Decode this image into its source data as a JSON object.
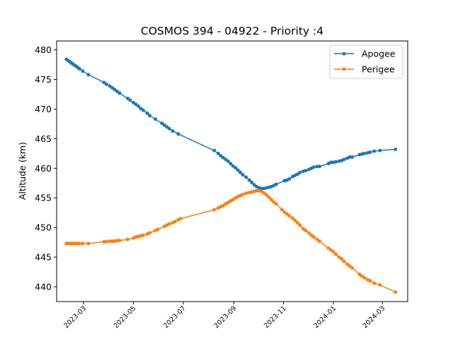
{
  "chart_data": {
    "type": "line",
    "title": "COSMOS 394 - 04922 - Priority :4",
    "xlabel": "",
    "ylabel": "Altitude (km)",
    "xlim": [
      "2023-01-27",
      "2024-04-01"
    ],
    "ylim": [
      437.5,
      481.5
    ],
    "x_tick_labels": [
      "2023-03",
      "2023-05",
      "2023-07",
      "2023-09",
      "2023-11",
      "2024-01",
      "2024-03"
    ],
    "x_tick_dates": [
      "2023-03-01",
      "2023-05-01",
      "2023-07-01",
      "2023-09-01",
      "2023-11-01",
      "2024-01-01",
      "2024-03-01"
    ],
    "y_ticks": [
      440,
      445,
      450,
      455,
      460,
      465,
      470,
      475,
      480
    ],
    "grid": false,
    "legend": "top-right",
    "series": [
      {
        "name": "Apogee",
        "color": "#1f77b4",
        "points": [
          [
            "2023-02-08",
            478.4
          ],
          [
            "2023-02-10",
            478.2
          ],
          [
            "2023-02-12",
            478.0
          ],
          [
            "2023-02-14",
            477.8
          ],
          [
            "2023-02-16",
            477.6
          ],
          [
            "2023-02-18",
            477.4
          ],
          [
            "2023-02-20",
            477.2
          ],
          [
            "2023-02-22",
            477.0
          ],
          [
            "2023-02-24",
            476.8
          ],
          [
            "2023-02-28",
            476.4
          ],
          [
            "2023-03-07",
            475.8
          ],
          [
            "2023-03-26",
            474.5
          ],
          [
            "2023-03-29",
            474.2
          ],
          [
            "2023-04-02",
            473.9
          ],
          [
            "2023-04-05",
            473.6
          ],
          [
            "2023-04-08",
            473.3
          ],
          [
            "2023-04-11",
            473.0
          ],
          [
            "2023-04-14",
            472.7
          ],
          [
            "2023-04-24",
            471.8
          ],
          [
            "2023-04-27",
            471.5
          ],
          [
            "2023-05-01",
            471.1
          ],
          [
            "2023-05-04",
            470.8
          ],
          [
            "2023-05-07",
            470.5
          ],
          [
            "2023-05-10",
            470.1
          ],
          [
            "2023-05-13",
            469.8
          ],
          [
            "2023-05-18",
            469.3
          ],
          [
            "2023-05-21",
            468.9
          ],
          [
            "2023-05-28",
            468.3
          ],
          [
            "2023-06-05",
            467.6
          ],
          [
            "2023-06-08",
            467.3
          ],
          [
            "2023-06-11",
            467.0
          ],
          [
            "2023-06-14",
            466.7
          ],
          [
            "2023-06-18",
            466.3
          ],
          [
            "2023-06-25",
            465.8
          ],
          [
            "2023-08-08",
            463.0
          ],
          [
            "2023-08-13",
            462.5
          ],
          [
            "2023-08-16",
            462.1
          ],
          [
            "2023-08-19",
            461.8
          ],
          [
            "2023-08-22",
            461.5
          ],
          [
            "2023-08-25",
            461.2
          ],
          [
            "2023-08-28",
            460.8
          ],
          [
            "2023-08-31",
            460.4
          ],
          [
            "2023-09-03",
            460.1
          ],
          [
            "2023-09-06",
            459.7
          ],
          [
            "2023-09-09",
            459.3
          ],
          [
            "2023-09-12",
            458.9
          ],
          [
            "2023-09-16",
            458.5
          ],
          [
            "2023-09-20",
            458.0
          ],
          [
            "2023-09-23",
            457.6
          ],
          [
            "2023-09-26",
            457.2
          ],
          [
            "2023-09-29",
            456.9
          ],
          [
            "2023-10-02",
            456.7
          ],
          [
            "2023-10-05",
            456.6
          ],
          [
            "2023-10-08",
            456.6
          ],
          [
            "2023-10-11",
            456.7
          ],
          [
            "2023-10-14",
            456.8
          ],
          [
            "2023-10-17",
            456.9
          ],
          [
            "2023-10-20",
            457.1
          ],
          [
            "2023-10-23",
            457.3
          ],
          [
            "2023-11-02",
            457.9
          ],
          [
            "2023-11-05",
            458.0
          ],
          [
            "2023-11-08",
            458.2
          ],
          [
            "2023-11-12",
            458.6
          ],
          [
            "2023-11-15",
            458.8
          ],
          [
            "2023-11-18",
            459.0
          ],
          [
            "2023-11-21",
            459.3
          ],
          [
            "2023-11-25",
            459.5
          ],
          [
            "2023-11-28",
            459.6
          ],
          [
            "2023-12-02",
            459.8
          ],
          [
            "2023-12-05",
            460.0
          ],
          [
            "2023-12-08",
            460.2
          ],
          [
            "2023-12-12",
            460.3
          ],
          [
            "2023-12-15",
            460.3
          ],
          [
            "2023-12-26",
            460.8
          ],
          [
            "2023-12-29",
            461.0
          ],
          [
            "2024-01-01",
            461.0
          ],
          [
            "2024-01-04",
            461.1
          ],
          [
            "2024-01-08",
            461.2
          ],
          [
            "2024-01-11",
            461.3
          ],
          [
            "2024-01-14",
            461.5
          ],
          [
            "2024-01-18",
            461.7
          ],
          [
            "2024-01-21",
            461.9
          ],
          [
            "2024-01-24",
            461.9
          ],
          [
            "2024-02-02",
            462.3
          ],
          [
            "2024-02-05",
            462.4
          ],
          [
            "2024-02-08",
            462.5
          ],
          [
            "2024-02-12",
            462.6
          ],
          [
            "2024-02-15",
            462.7
          ],
          [
            "2024-02-20",
            462.9
          ],
          [
            "2024-02-27",
            463.0
          ],
          [
            "2024-03-17",
            463.2
          ]
        ]
      },
      {
        "name": "Perigee",
        "color": "#ff7f0e",
        "points": [
          [
            "2023-02-08",
            447.3
          ],
          [
            "2023-02-10",
            447.3
          ],
          [
            "2023-02-12",
            447.3
          ],
          [
            "2023-02-14",
            447.3
          ],
          [
            "2023-02-16",
            447.3
          ],
          [
            "2023-02-18",
            447.3
          ],
          [
            "2023-02-20",
            447.3
          ],
          [
            "2023-02-22",
            447.3
          ],
          [
            "2023-02-24",
            447.3
          ],
          [
            "2023-02-28",
            447.3
          ],
          [
            "2023-03-07",
            447.3
          ],
          [
            "2023-03-26",
            447.6
          ],
          [
            "2023-03-29",
            447.6
          ],
          [
            "2023-04-02",
            447.7
          ],
          [
            "2023-04-05",
            447.7
          ],
          [
            "2023-04-08",
            447.7
          ],
          [
            "2023-04-11",
            447.8
          ],
          [
            "2023-04-14",
            447.8
          ],
          [
            "2023-04-24",
            448.0
          ],
          [
            "2023-05-01",
            448.2
          ],
          [
            "2023-05-04",
            448.4
          ],
          [
            "2023-05-07",
            448.5
          ],
          [
            "2023-05-10",
            448.6
          ],
          [
            "2023-05-13",
            448.7
          ],
          [
            "2023-05-18",
            448.9
          ],
          [
            "2023-05-21",
            449.1
          ],
          [
            "2023-05-28",
            449.5
          ],
          [
            "2023-05-31",
            449.7
          ],
          [
            "2023-06-08",
            450.2
          ],
          [
            "2023-06-11",
            450.4
          ],
          [
            "2023-06-14",
            450.6
          ],
          [
            "2023-06-18",
            450.8
          ],
          [
            "2023-06-21",
            451.0
          ],
          [
            "2023-06-25",
            451.3
          ],
          [
            "2023-06-28",
            451.5
          ],
          [
            "2023-08-08",
            453.0
          ],
          [
            "2023-08-13",
            453.3
          ],
          [
            "2023-08-16",
            453.5
          ],
          [
            "2023-08-19",
            453.7
          ],
          [
            "2023-08-22",
            454.0
          ],
          [
            "2023-08-25",
            454.2
          ],
          [
            "2023-08-28",
            454.5
          ],
          [
            "2023-08-31",
            454.7
          ],
          [
            "2023-09-03",
            455.0
          ],
          [
            "2023-09-06",
            455.2
          ],
          [
            "2023-09-09",
            455.4
          ],
          [
            "2023-09-12",
            455.6
          ],
          [
            "2023-09-16",
            455.8
          ],
          [
            "2023-09-20",
            455.9
          ],
          [
            "2023-09-23",
            456.0
          ],
          [
            "2023-09-26",
            456.1
          ],
          [
            "2023-09-29",
            456.2
          ],
          [
            "2023-10-02",
            456.2
          ],
          [
            "2023-10-05",
            456.1
          ],
          [
            "2023-10-08",
            455.8
          ],
          [
            "2023-10-11",
            455.5
          ],
          [
            "2023-10-14",
            455.1
          ],
          [
            "2023-10-17",
            454.7
          ],
          [
            "2023-10-20",
            454.3
          ],
          [
            "2023-10-23",
            454.0
          ],
          [
            "2023-10-30",
            453.0
          ],
          [
            "2023-11-02",
            452.6
          ],
          [
            "2023-11-05",
            452.3
          ],
          [
            "2023-11-08",
            452.0
          ],
          [
            "2023-11-12",
            451.6
          ],
          [
            "2023-11-15",
            451.2
          ],
          [
            "2023-11-18",
            450.8
          ],
          [
            "2023-11-21",
            450.4
          ],
          [
            "2023-11-25",
            449.8
          ],
          [
            "2023-11-28",
            449.5
          ],
          [
            "2023-12-02",
            449.1
          ],
          [
            "2023-12-05",
            448.7
          ],
          [
            "2023-12-08",
            448.4
          ],
          [
            "2023-12-12",
            448.0
          ],
          [
            "2023-12-15",
            447.7
          ],
          [
            "2023-12-26",
            446.5
          ],
          [
            "2023-12-29",
            446.2
          ],
          [
            "2024-01-01",
            445.9
          ],
          [
            "2024-01-04",
            445.5
          ],
          [
            "2024-01-08",
            445.0
          ],
          [
            "2024-01-11",
            444.7
          ],
          [
            "2024-01-14",
            444.3
          ],
          [
            "2024-01-18",
            443.8
          ],
          [
            "2024-01-21",
            443.5
          ],
          [
            "2024-01-24",
            443.2
          ],
          [
            "2024-02-02",
            442.1
          ],
          [
            "2024-02-05",
            441.8
          ],
          [
            "2024-02-08",
            441.5
          ],
          [
            "2024-02-12",
            441.2
          ],
          [
            "2024-02-15",
            441.0
          ],
          [
            "2024-02-20",
            440.6
          ],
          [
            "2024-02-27",
            440.3
          ],
          [
            "2024-03-17",
            439.1
          ]
        ]
      }
    ]
  }
}
